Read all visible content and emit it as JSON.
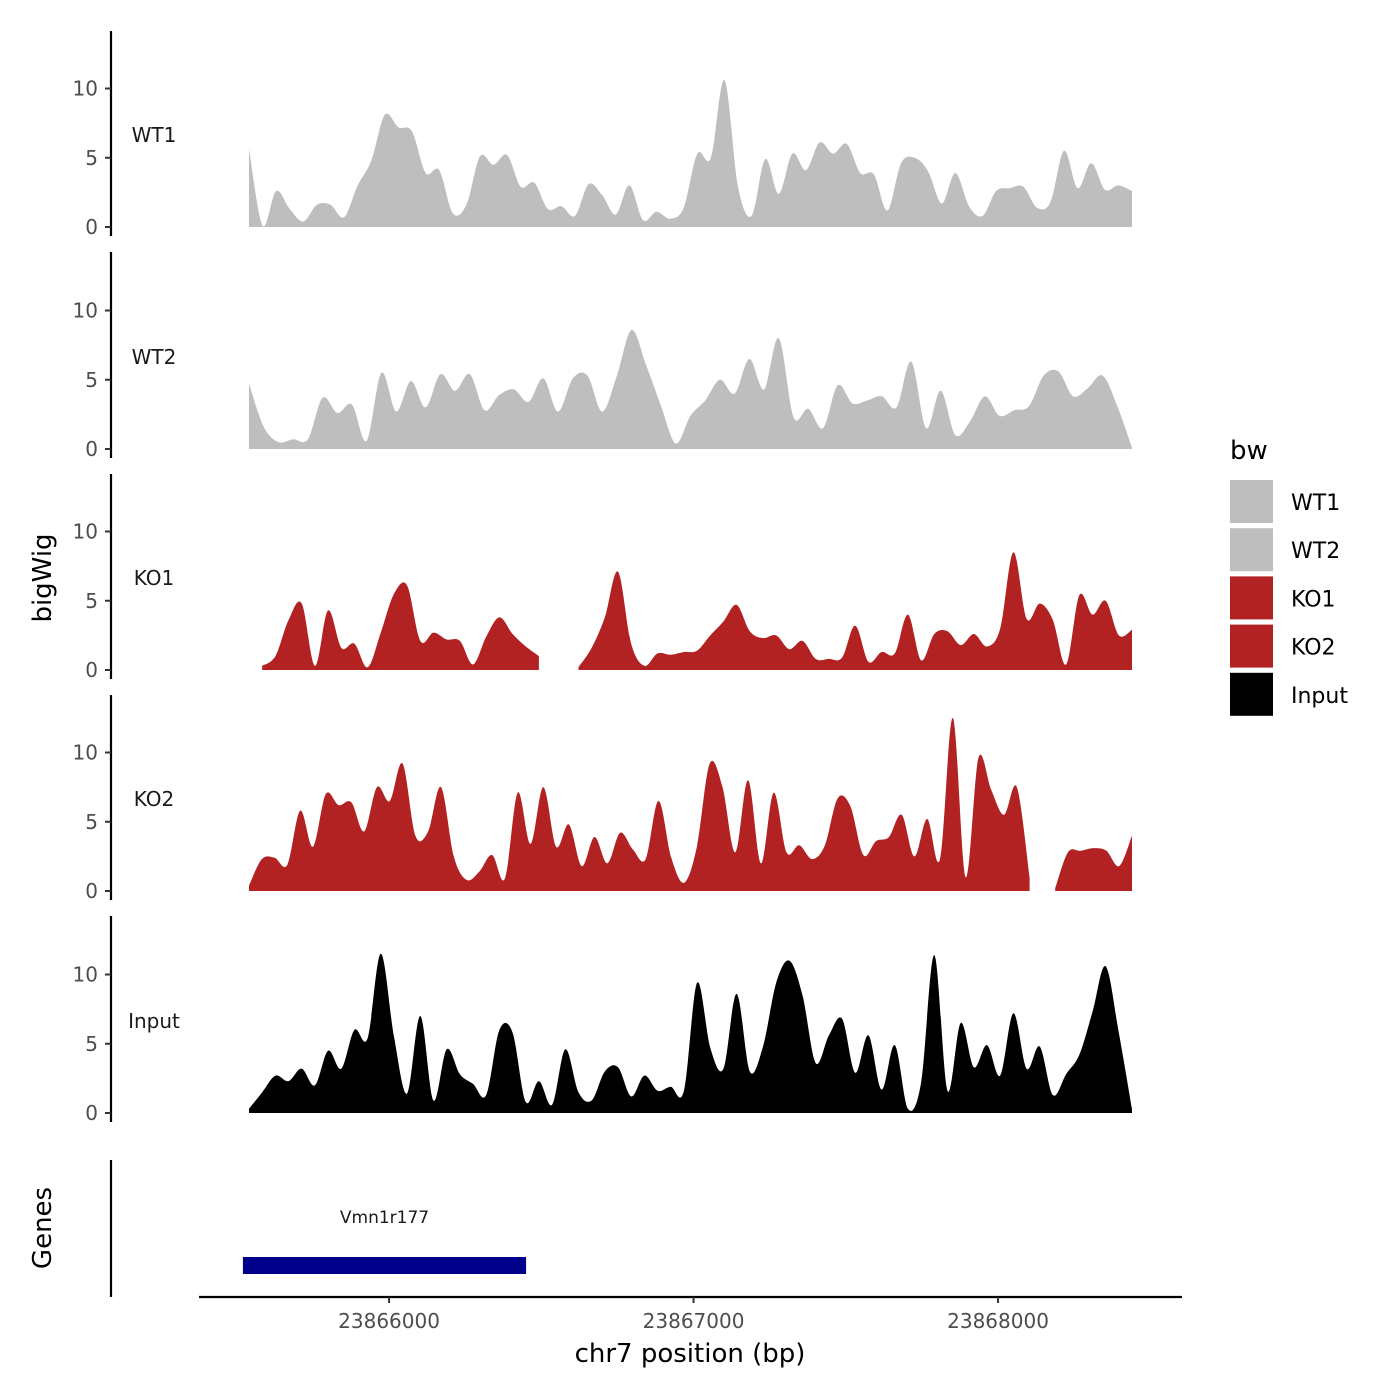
{
  "chart_data": {
    "type": "area",
    "y_axis_title": "bigWig",
    "x_axis_title": "chr7 position (bp)",
    "x_range": [
      23865540,
      23868440
    ],
    "x_ticks": [
      23866000,
      23867000,
      23868000
    ],
    "x_tick_labels": [
      "23866000",
      "23867000",
      "23868000"
    ],
    "y_range": [
      0,
      14
    ],
    "y_ticks": [
      0,
      5,
      10
    ],
    "y_tick_labels": [
      "0",
      "5",
      "10"
    ],
    "tracks": [
      {
        "name": "WT1",
        "color": "#bebebe",
        "x_start": 23865540,
        "x_end": 23868440,
        "values": [
          5.6,
          0.1,
          2.6,
          1.3,
          0.4,
          1.6,
          1.6,
          0.7,
          3.0,
          4.8,
          8.1,
          7.2,
          6.9,
          3.9,
          4.1,
          1.0,
          1.6,
          5.1,
          4.5,
          5.2,
          2.9,
          3.2,
          1.3,
          1.5,
          0.8,
          3.1,
          2.3,
          0.9,
          3.0,
          0.5,
          1.1,
          0.6,
          1.4,
          5.3,
          5.0,
          10.6,
          2.9,
          0.8,
          4.9,
          2.4,
          5.3,
          4.1,
          6.1,
          5.3,
          6.0,
          3.9,
          3.8,
          1.2,
          4.6,
          5.0,
          4.0,
          1.7,
          3.9,
          1.5,
          0.8,
          2.6,
          2.8,
          2.9,
          1.4,
          1.8,
          5.5,
          2.8,
          4.6,
          2.7,
          3.0,
          2.6
        ]
      },
      {
        "name": "WT2",
        "color": "#bebebe",
        "x_start": 23865540,
        "x_end": 23868440,
        "values": [
          4.7,
          1.6,
          0.5,
          0.7,
          0.7,
          3.7,
          2.6,
          3.2,
          0.6,
          5.5,
          2.7,
          4.9,
          3.0,
          5.4,
          4.2,
          5.4,
          2.8,
          3.9,
          4.3,
          3.4,
          5.1,
          2.7,
          5.1,
          5.3,
          2.7,
          5.3,
          8.6,
          6.0,
          3.1,
          0.4,
          2.4,
          3.5,
          5.0,
          4.0,
          6.5,
          4.3,
          8.0,
          2.3,
          2.9,
          1.5,
          4.6,
          3.3,
          3.5,
          3.8,
          3.0,
          6.3,
          1.5,
          4.2,
          1.0,
          2.0,
          3.8,
          2.4,
          2.8,
          3.1,
          5.3,
          5.6,
          3.8,
          4.4,
          5.3,
          3.1,
          0.1
        ]
      },
      {
        "name": "KO1",
        "color": "#b22222",
        "x_start": 23865540,
        "x_end": 23868440,
        "values": [
          null,
          0.3,
          1.0,
          3.6,
          4.8,
          0.3,
          4.3,
          1.6,
          1.9,
          0.2,
          2.7,
          5.5,
          6.1,
          2.1,
          2.7,
          2.2,
          2.1,
          0.4,
          2.4,
          3.8,
          2.6,
          1.7,
          1.0,
          null,
          null,
          0.2,
          1.6,
          3.8,
          7.1,
          1.9,
          0.3,
          1.2,
          1.1,
          1.3,
          1.4,
          2.5,
          3.5,
          4.7,
          2.8,
          2.3,
          2.5,
          1.5,
          2.1,
          0.8,
          0.8,
          0.9,
          3.2,
          0.6,
          1.3,
          1.2,
          4.0,
          0.7,
          2.6,
          2.8,
          1.8,
          2.6,
          1.7,
          3.0,
          8.5,
          3.7,
          4.8,
          3.6,
          0.4,
          5.4,
          4.0,
          5.0,
          2.5,
          2.9
        ]
      },
      {
        "name": "KO2",
        "color": "#b22222",
        "x_start": 23865540,
        "x_end": 23868440,
        "values": [
          0.4,
          2.3,
          2.4,
          1.9,
          5.8,
          3.2,
          7.0,
          6.2,
          6.4,
          4.3,
          7.5,
          6.5,
          9.2,
          4.0,
          4.3,
          7.5,
          2.5,
          0.8,
          1.4,
          2.6,
          0.9,
          7.1,
          3.4,
          7.5,
          3.2,
          4.8,
          1.8,
          3.9,
          2.0,
          4.2,
          3.0,
          2.3,
          6.5,
          2.4,
          0.6,
          3.2,
          9.2,
          7.5,
          2.8,
          8.0,
          2.0,
          7.1,
          2.8,
          3.3,
          2.3,
          3.3,
          6.7,
          6.1,
          2.6,
          3.6,
          3.9,
          5.5,
          2.5,
          5.2,
          2.3,
          12.5,
          1.0,
          9.6,
          7.3,
          5.5,
          7.5,
          1.0,
          null,
          0.2,
          2.8,
          2.9,
          3.1,
          2.9,
          1.8,
          4.0
        ]
      },
      {
        "name": "Input",
        "color": "#000000",
        "x_start": 23865540,
        "x_end": 23868440,
        "values": [
          0.3,
          1.5,
          2.7,
          2.3,
          3.2,
          2.0,
          4.5,
          3.2,
          6.0,
          5.4,
          11.5,
          5.5,
          1.4,
          7.0,
          0.9,
          4.6,
          2.8,
          2.1,
          1.3,
          6.0,
          5.8,
          0.8,
          2.3,
          0.6,
          4.6,
          1.5,
          0.9,
          3.0,
          3.3,
          1.2,
          2.7,
          1.6,
          1.9,
          1.6,
          9.4,
          4.7,
          3.2,
          8.6,
          3.0,
          4.8,
          9.4,
          11.0,
          8.5,
          3.6,
          5.6,
          6.8,
          2.9,
          5.6,
          1.7,
          4.9,
          0.3,
          2.2,
          11.4,
          1.6,
          6.5,
          3.3,
          4.9,
          2.7,
          7.2,
          3.2,
          4.8,
          1.3,
          2.8,
          4.2,
          7.3,
          10.6,
          5.8,
          0.3
        ]
      }
    ],
    "genes_track": {
      "title": "Genes",
      "genes": [
        {
          "name": "Vmn1r177",
          "start": 23865520,
          "end": 23866450,
          "color": "#00008b"
        }
      ]
    },
    "legend": {
      "title": "bw",
      "placement": "right",
      "items": [
        {
          "label": "WT1",
          "color": "#bebebe"
        },
        {
          "label": "WT2",
          "color": "#bebebe"
        },
        {
          "label": "KO1",
          "color": "#b22222"
        },
        {
          "label": "KO2",
          "color": "#b22222"
        },
        {
          "label": "Input",
          "color": "#000000"
        }
      ]
    }
  }
}
